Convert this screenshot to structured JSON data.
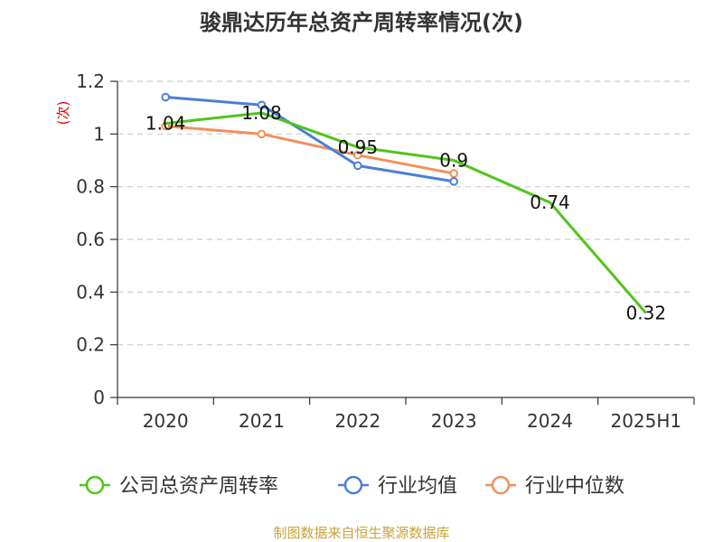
{
  "chart_data": {
    "type": "line",
    "title": "骏鼎达历年总资产周转率情况(次)",
    "ylabel": "(次)",
    "xlabel": "",
    "categories": [
      "2020",
      "2021",
      "2022",
      "2023",
      "2024",
      "2025H1"
    ],
    "ylim": [
      0,
      1.2
    ],
    "yticks": [
      "0",
      "0.2",
      "0.4",
      "0.6",
      "0.8",
      "1",
      "1.2"
    ],
    "grid": true,
    "legend_position": "bottom",
    "series": [
      {
        "name": "公司总资产周转率",
        "color": "#52c41a",
        "values": [
          1.04,
          1.08,
          0.95,
          0.9,
          0.74,
          0.32
        ],
        "labels": [
          "1.04",
          "1.08",
          "0.95",
          "0.9",
          "0.74",
          "0.32"
        ]
      },
      {
        "name": "行业均值",
        "color": "#4a7fd9",
        "values": [
          1.14,
          1.11,
          0.88,
          0.82,
          null,
          null
        ]
      },
      {
        "name": "行业中位数",
        "color": "#f28f5a",
        "values": [
          1.03,
          1.0,
          0.92,
          0.85,
          null,
          null
        ]
      }
    ],
    "source": "制图数据来自恒生聚源数据库"
  }
}
